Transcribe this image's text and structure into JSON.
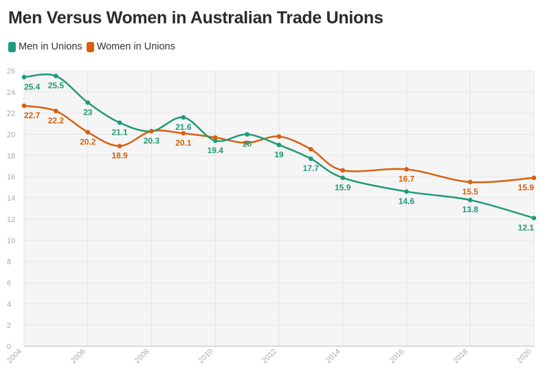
{
  "title": "Men Versus Women in Australian Trade Unions",
  "legend": [
    {
      "label": "Men in Unions",
      "color": "#1e9a78"
    },
    {
      "label": "Women in Unions",
      "color": "#d95f0e"
    }
  ],
  "chart_data": {
    "type": "line",
    "title": "Men Versus Women in Australian Trade Unions",
    "xlabel": "",
    "ylabel": "",
    "xlim": [
      2004,
      2020
    ],
    "ylim": [
      0,
      26
    ],
    "x_ticks": [
      2004,
      2006,
      2008,
      2010,
      2012,
      2014,
      2016,
      2018,
      2020
    ],
    "y_ticks": [
      0,
      2,
      4,
      6,
      8,
      10,
      12,
      14,
      16,
      18,
      20,
      22,
      24,
      26
    ],
    "grid": true,
    "legend_position": "top-left",
    "series": [
      {
        "name": "Men in Unions",
        "color": "#1e9a78",
        "points": [
          {
            "x": 2004,
            "y": 25.4
          },
          {
            "x": 2005,
            "y": 25.5
          },
          {
            "x": 2006,
            "y": 23
          },
          {
            "x": 2007,
            "y": 21.1
          },
          {
            "x": 2008,
            "y": 20.3
          },
          {
            "x": 2009,
            "y": 21.6
          },
          {
            "x": 2010,
            "y": 19.4
          },
          {
            "x": 2011,
            "y": 20
          },
          {
            "x": 2012,
            "y": 19
          },
          {
            "x": 2013,
            "y": 17.7
          },
          {
            "x": 2014,
            "y": 15.9
          },
          {
            "x": 2016,
            "y": 14.6
          },
          {
            "x": 2018,
            "y": 13.8
          },
          {
            "x": 2020,
            "y": 12.1
          }
        ]
      },
      {
        "name": "Women in Unions",
        "color": "#d95f0e",
        "points": [
          {
            "x": 2004,
            "y": 22.7
          },
          {
            "x": 2005,
            "y": 22.2
          },
          {
            "x": 2006,
            "y": 20.2
          },
          {
            "x": 2007,
            "y": 18.9
          },
          {
            "x": 2008,
            "y": 20.3
          },
          {
            "x": 2009,
            "y": 20.1
          },
          {
            "x": 2010,
            "y": 19.7
          },
          {
            "x": 2011,
            "y": 19.2
          },
          {
            "x": 2012,
            "y": 19.8
          },
          {
            "x": 2013,
            "y": 18.6
          },
          {
            "x": 2014,
            "y": 16.6
          },
          {
            "x": 2016,
            "y": 16.7
          },
          {
            "x": 2018,
            "y": 15.5
          },
          {
            "x": 2020,
            "y": 15.9
          }
        ]
      }
    ],
    "data_labels": [
      {
        "series": 0,
        "x": 2004,
        "text": "25.4"
      },
      {
        "series": 0,
        "x": 2005,
        "text": "25.5"
      },
      {
        "series": 0,
        "x": 2006,
        "text": "23"
      },
      {
        "series": 0,
        "x": 2007,
        "text": "21.1"
      },
      {
        "series": 0,
        "x": 2008,
        "text": "20.3"
      },
      {
        "series": 0,
        "x": 2009,
        "text": "21.6"
      },
      {
        "series": 0,
        "x": 2010,
        "text": "19.4"
      },
      {
        "series": 0,
        "x": 2011,
        "text": "20"
      },
      {
        "series": 0,
        "x": 2012,
        "text": "19"
      },
      {
        "series": 0,
        "x": 2013,
        "text": "17.7"
      },
      {
        "series": 0,
        "x": 2014,
        "text": "15.9"
      },
      {
        "series": 0,
        "x": 2016,
        "text": "14.6"
      },
      {
        "series": 0,
        "x": 2018,
        "text": "13.8"
      },
      {
        "series": 0,
        "x": 2020,
        "text": "12.1"
      },
      {
        "series": 1,
        "x": 2004,
        "text": "22.7"
      },
      {
        "series": 1,
        "x": 2005,
        "text": "22.2"
      },
      {
        "series": 1,
        "x": 2006,
        "text": "20.2"
      },
      {
        "series": 1,
        "x": 2007,
        "text": "18.9"
      },
      {
        "series": 1,
        "x": 2009,
        "text": "20.1"
      },
      {
        "series": 1,
        "x": 2016,
        "text": "16.7"
      },
      {
        "series": 1,
        "x": 2018,
        "text": "15.5"
      },
      {
        "series": 1,
        "x": 2020,
        "text": "15.9"
      }
    ]
  }
}
